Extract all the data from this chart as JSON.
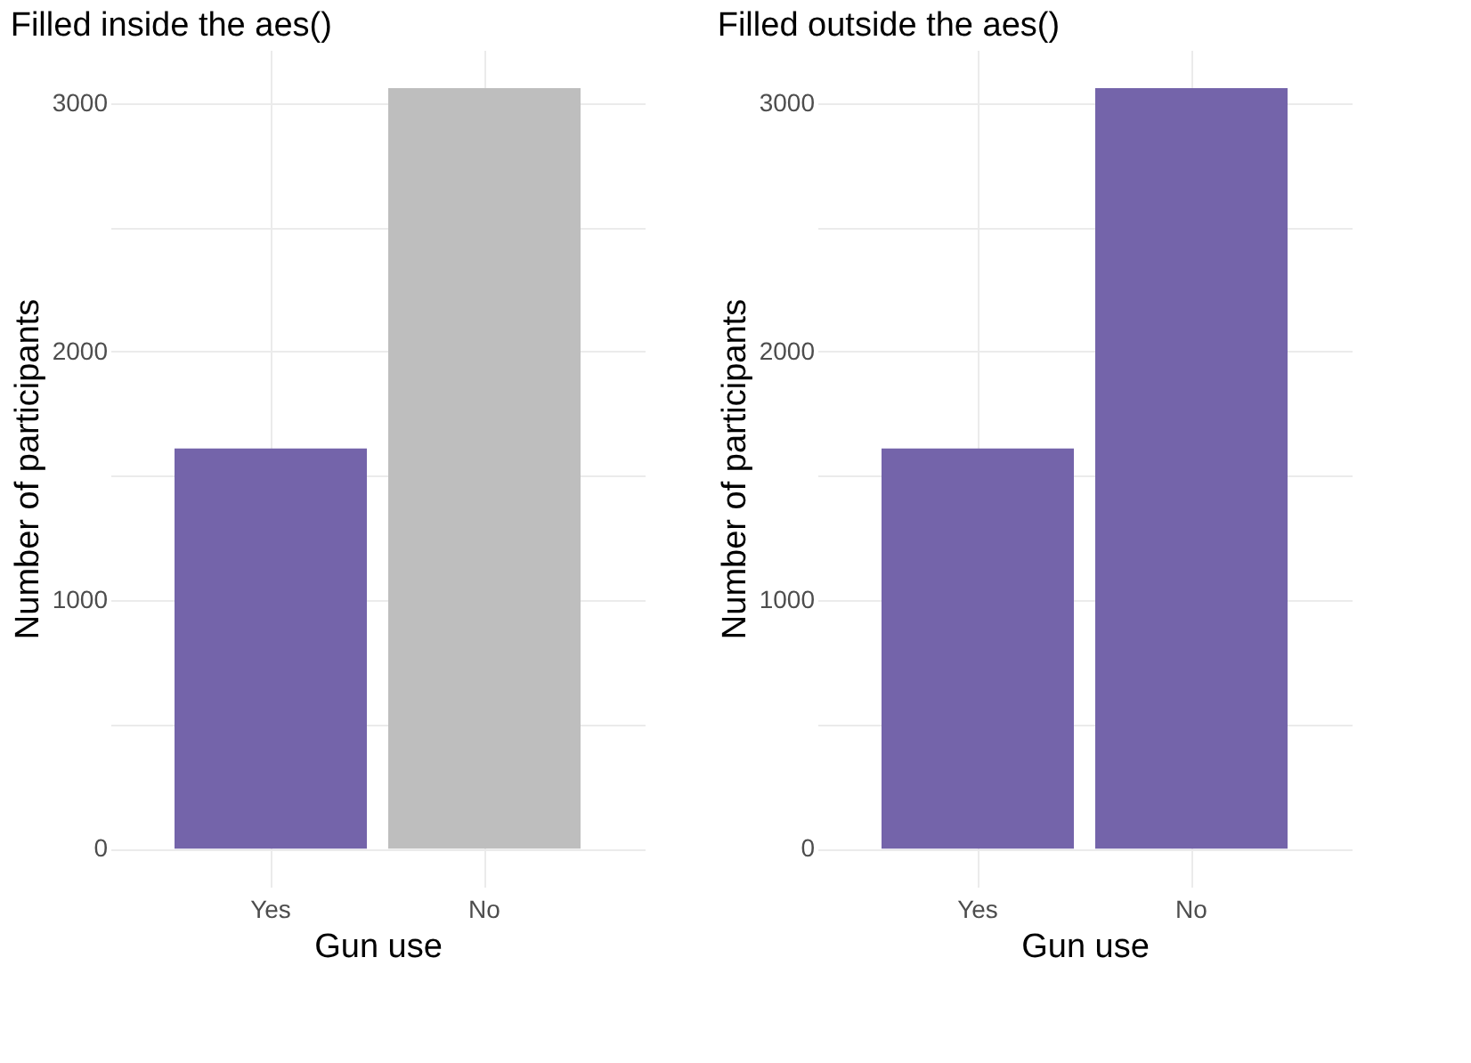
{
  "chart_data": [
    {
      "type": "bar",
      "title": "Filled inside the aes()",
      "xlabel": "Gun use",
      "ylabel": "Number of participants",
      "categories": [
        "Yes",
        "No"
      ],
      "values": [
        1610,
        3060
      ],
      "colors": [
        "#7464aa",
        "#bebebe"
      ],
      "ylim": [
        -153,
        3214
      ],
      "yticks": [
        {
          "value": 0,
          "label": "0"
        },
        {
          "value": 500,
          "label": null
        },
        {
          "value": 1000,
          "label": "1000"
        },
        {
          "value": 1500,
          "label": null
        },
        {
          "value": 2000,
          "label": "2000"
        },
        {
          "value": 2500,
          "label": null
        },
        {
          "value": 3000,
          "label": "3000"
        }
      ],
      "grid": true,
      "legend": false
    },
    {
      "type": "bar",
      "title": "Filled outside the aes()",
      "xlabel": "Gun use",
      "ylabel": "Number of participants",
      "categories": [
        "Yes",
        "No"
      ],
      "values": [
        1610,
        3060
      ],
      "colors": [
        "#7464aa",
        "#7464aa"
      ],
      "ylim": [
        -153,
        3214
      ],
      "yticks": [
        {
          "value": 0,
          "label": "0"
        },
        {
          "value": 500,
          "label": null
        },
        {
          "value": 1000,
          "label": "1000"
        },
        {
          "value": 1500,
          "label": null
        },
        {
          "value": 2000,
          "label": "2000"
        },
        {
          "value": 2500,
          "label": null
        },
        {
          "value": 3000,
          "label": "3000"
        }
      ],
      "grid": true,
      "legend": false
    }
  ]
}
